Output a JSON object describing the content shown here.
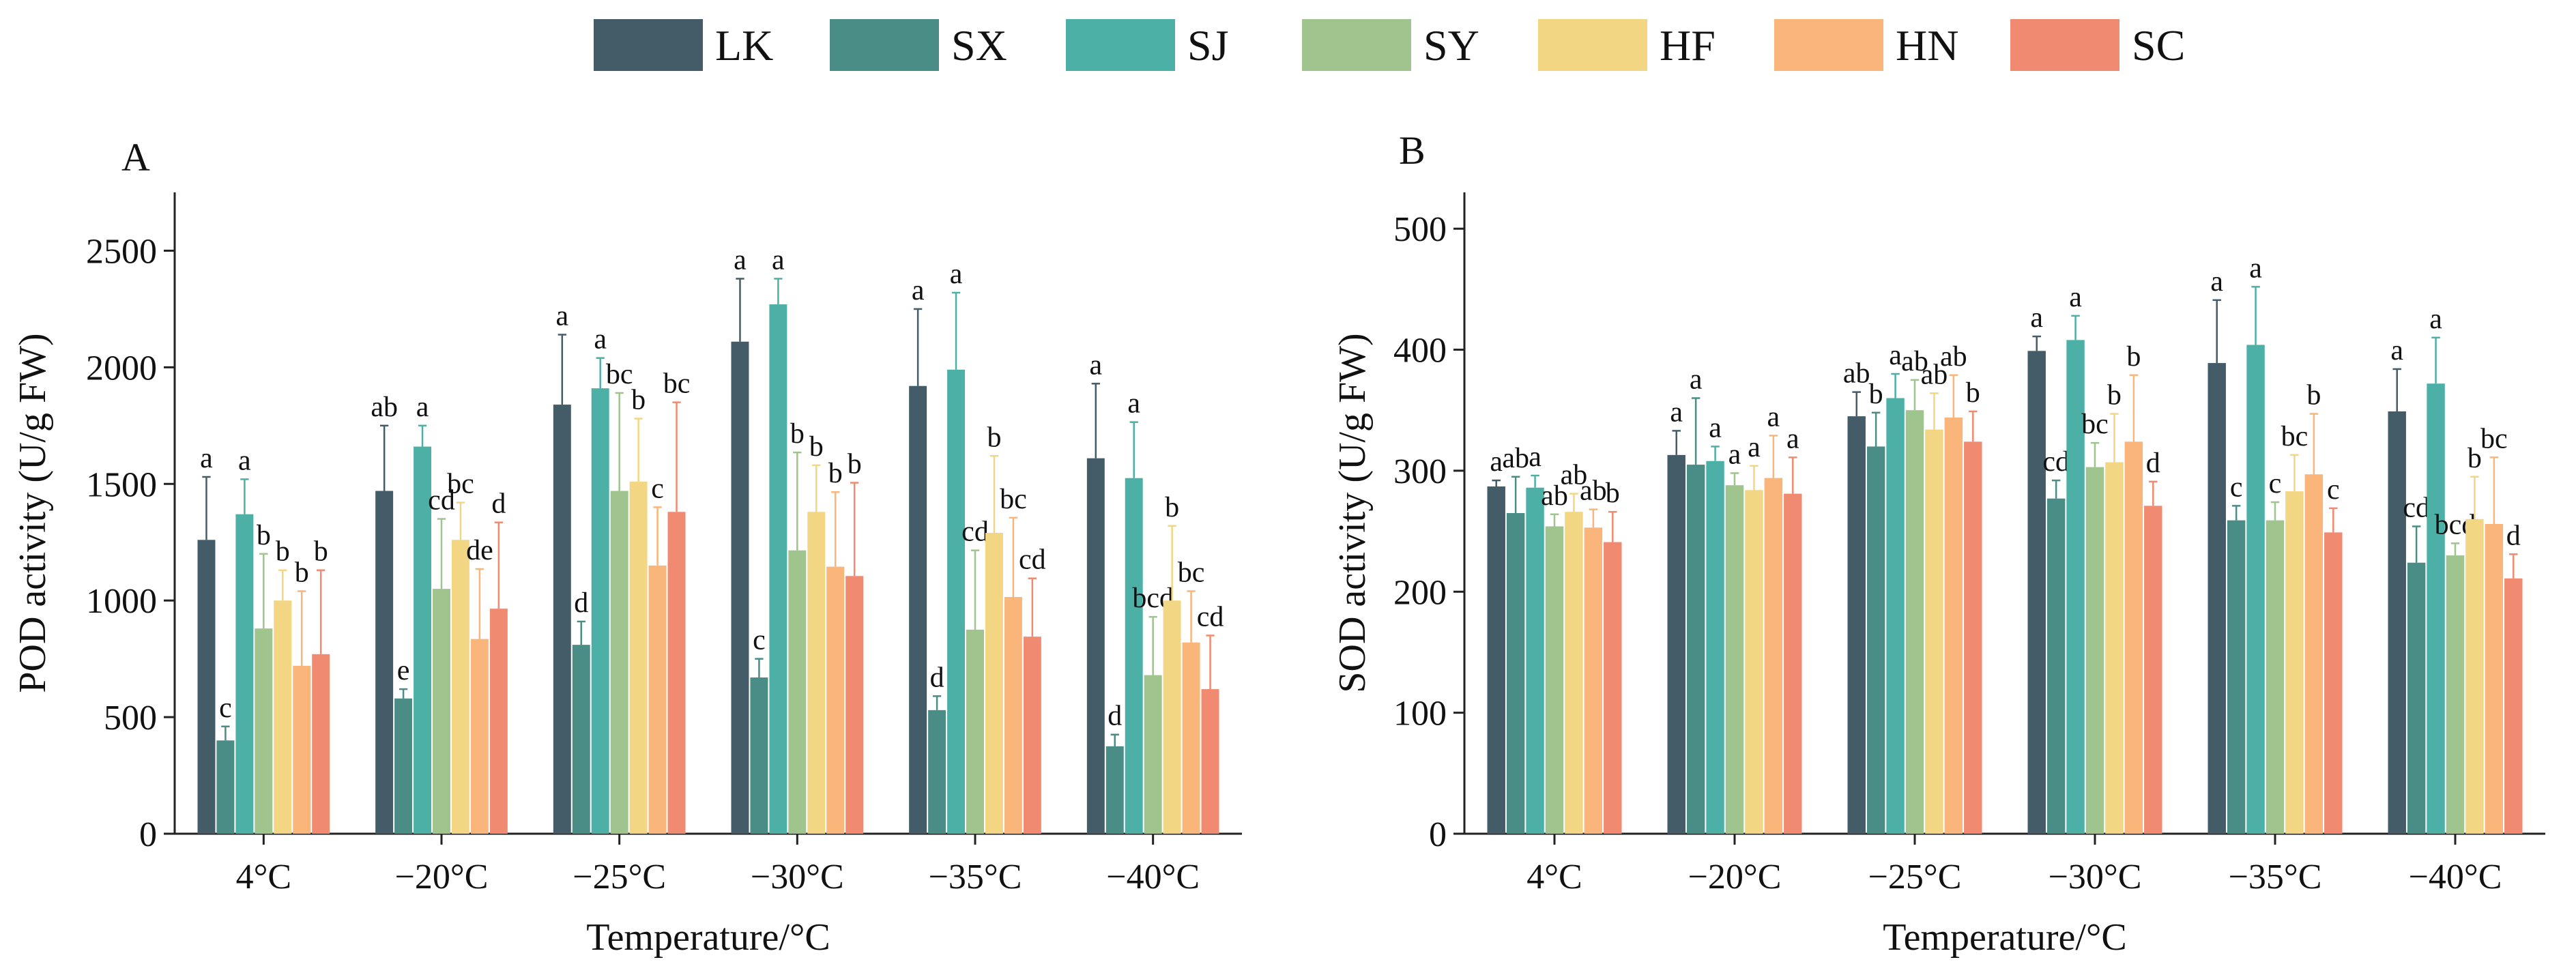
{
  "legend": {
    "series": [
      "LK",
      "SX",
      "SJ",
      "SY",
      "HF",
      "HN",
      "SC"
    ],
    "colors": [
      "#445c68",
      "#4a8c86",
      "#4db0a6",
      "#9fc48e",
      "#f3d684",
      "#f9b57a",
      "#f08a70"
    ]
  },
  "chart_data": [
    {
      "type": "bar",
      "panel": "A",
      "title": "",
      "xlabel": "Temperature/°C",
      "ylabel": "POD activity (U/g FW)",
      "ylim": [
        0,
        2750
      ],
      "yticks": [
        0,
        500,
        1000,
        1500,
        2000,
        2500
      ],
      "categories": [
        "4°C",
        "−20°C",
        "−25°C",
        "−30°C",
        "−35°C",
        "−40°C"
      ],
      "series": [
        {
          "name": "LK",
          "values": [
            1260,
            1470,
            1840,
            2110,
            1920,
            1610
          ],
          "errors": [
            270,
            280,
            300,
            270,
            330,
            320
          ],
          "letters": [
            "a",
            "ab",
            "a",
            "a",
            "a",
            "a"
          ]
        },
        {
          "name": "SX",
          "values": [
            400,
            580,
            810,
            670,
            530,
            375
          ],
          "errors": [
            60,
            40,
            100,
            80,
            60,
            50
          ],
          "letters": [
            "c",
            "e",
            "d",
            "c",
            "d",
            "d"
          ]
        },
        {
          "name": "SJ",
          "values": [
            1370,
            1660,
            1910,
            2270,
            1990,
            1525
          ],
          "errors": [
            150,
            90,
            130,
            110,
            330,
            240
          ],
          "letters": [
            "a",
            "a",
            "a",
            "a",
            "a",
            "a"
          ]
        },
        {
          "name": "SY",
          "values": [
            880,
            1050,
            1470,
            1215,
            875,
            680
          ],
          "errors": [
            320,
            300,
            420,
            420,
            340,
            250
          ],
          "letters": [
            "b",
            "cd",
            "bc",
            "b",
            "cd",
            "bcd"
          ]
        },
        {
          "name": "HF",
          "values": [
            1000,
            1260,
            1510,
            1380,
            1290,
            1000
          ],
          "errors": [
            130,
            160,
            270,
            200,
            330,
            320
          ],
          "letters": [
            "b",
            "bc",
            "b",
            "b",
            "b",
            "b"
          ]
        },
        {
          "name": "HN",
          "values": [
            720,
            835,
            1150,
            1145,
            1015,
            820
          ],
          "errors": [
            320,
            300,
            250,
            320,
            340,
            220
          ],
          "letters": [
            "b",
            "de",
            "c",
            "b",
            "bc",
            "bc"
          ]
        },
        {
          "name": "SC",
          "values": [
            770,
            965,
            1380,
            1105,
            845,
            620
          ],
          "errors": [
            360,
            370,
            470,
            400,
            250,
            230
          ],
          "letters": [
            "b",
            "d",
            "bc",
            "b",
            "cd",
            "cd"
          ]
        }
      ]
    },
    {
      "type": "bar",
      "panel": "B",
      "title": "",
      "xlabel": "Temperature/°C",
      "ylabel": "SOD activity (U/g FW)",
      "ylim": [
        0,
        530
      ],
      "yticks": [
        0,
        100,
        200,
        300,
        400,
        500
      ],
      "categories": [
        "4°C",
        "−20°C",
        "−25°C",
        "−30°C",
        "−35°C",
        "−40°C"
      ],
      "series": [
        {
          "name": "LK",
          "values": [
            287,
            313,
            345,
            399,
            389,
            349
          ],
          "errors": [
            5,
            20,
            20,
            12,
            52,
            35
          ],
          "letters": [
            "a",
            "a",
            "ab",
            "a",
            "a",
            "a"
          ]
        },
        {
          "name": "SX",
          "values": [
            265,
            305,
            320,
            277,
            259,
            224
          ],
          "errors": [
            30,
            55,
            28,
            15,
            12,
            30
          ],
          "letters": [
            "ab",
            "a",
            "b",
            "cd",
            "c",
            "cd"
          ]
        },
        {
          "name": "SJ",
          "values": [
            286,
            308,
            360,
            408,
            404,
            372
          ],
          "errors": [
            10,
            12,
            20,
            20,
            48,
            38
          ],
          "letters": [
            "a",
            "a",
            "a",
            "a",
            "a",
            "a"
          ]
        },
        {
          "name": "SY",
          "values": [
            254,
            288,
            350,
            303,
            259,
            230
          ],
          "errors": [
            10,
            10,
            25,
            20,
            15,
            10
          ],
          "letters": [
            "ab",
            "a",
            "ab",
            "bc",
            "c",
            "bcd"
          ]
        },
        {
          "name": "HF",
          "values": [
            266,
            284,
            334,
            307,
            283,
            260
          ],
          "errors": [
            15,
            20,
            30,
            40,
            30,
            35
          ],
          "letters": [
            "ab",
            "a",
            "ab",
            "b",
            "bc",
            "b"
          ]
        },
        {
          "name": "HN",
          "values": [
            253,
            294,
            344,
            324,
            297,
            256
          ],
          "errors": [
            15,
            35,
            35,
            55,
            50,
            55
          ],
          "letters": [
            "ab",
            "a",
            "ab",
            "b",
            "b",
            "bc"
          ]
        },
        {
          "name": "SC",
          "values": [
            241,
            281,
            324,
            271,
            249,
            211
          ],
          "errors": [
            25,
            30,
            25,
            20,
            20,
            20
          ],
          "letters": [
            "b",
            "a",
            "b",
            "d",
            "c",
            "d"
          ]
        }
      ]
    }
  ]
}
